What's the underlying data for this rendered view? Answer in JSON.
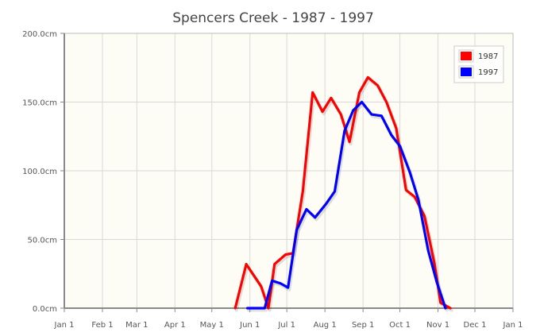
{
  "chart_data": {
    "type": "line",
    "title": "Spencers Creek - 1987 - 1997",
    "xlabel": "",
    "ylabel": "",
    "x_axis_type": "date",
    "xlim": [
      "Jan 1",
      "Jan 1"
    ],
    "ylim": [
      0,
      200
    ],
    "y_ticks": [
      {
        "value": 0,
        "label": "0.0cm"
      },
      {
        "value": 50,
        "label": "50.0cm"
      },
      {
        "value": 100,
        "label": "100.0cm"
      },
      {
        "value": 150,
        "label": "150.0cm"
      },
      {
        "value": 200,
        "label": "200.0cm"
      }
    ],
    "x_ticks": [
      "Jan 1",
      "Feb 1",
      "Mar 1",
      "Apr 1",
      "May 1",
      "Jun 1",
      "Jul 1",
      "Aug 1",
      "Sep 1",
      "Oct 1",
      "Nov 1",
      "Dec 1",
      "Jan 1"
    ],
    "grid": true,
    "legend_position": "top-right",
    "plot_background": "#fdfcf5",
    "series": [
      {
        "name": "1987",
        "color": "#ff0000",
        "points": [
          {
            "x": "May 20",
            "y": 0
          },
          {
            "x": "May 29",
            "y": 32
          },
          {
            "x": "Jun 10",
            "y": 16
          },
          {
            "x": "Jun 16",
            "y": 0
          },
          {
            "x": "Jun 21",
            "y": 32
          },
          {
            "x": "Jun 30",
            "y": 39
          },
          {
            "x": "Jul 6",
            "y": 40
          },
          {
            "x": "Jul 14",
            "y": 85
          },
          {
            "x": "Jul 22",
            "y": 157
          },
          {
            "x": "Jul 30",
            "y": 143
          },
          {
            "x": "Aug 6",
            "y": 153
          },
          {
            "x": "Aug 14",
            "y": 141
          },
          {
            "x": "Aug 21",
            "y": 121
          },
          {
            "x": "Aug 29",
            "y": 157
          },
          {
            "x": "Sep 5",
            "y": 168
          },
          {
            "x": "Sep 13",
            "y": 162
          },
          {
            "x": "Sep 20",
            "y": 150
          },
          {
            "x": "Sep 28",
            "y": 131
          },
          {
            "x": "Oct 6",
            "y": 86
          },
          {
            "x": "Oct 13",
            "y": 81
          },
          {
            "x": "Oct 21",
            "y": 67
          },
          {
            "x": "Oct 29",
            "y": 33
          },
          {
            "x": "Nov 3",
            "y": 4
          },
          {
            "x": "Nov 11",
            "y": 0
          }
        ]
      },
      {
        "name": "1997",
        "color": "#0000ff",
        "points": [
          {
            "x": "May 30",
            "y": 0
          },
          {
            "x": "Jun 13",
            "y": 0
          },
          {
            "x": "Jun 19",
            "y": 20
          },
          {
            "x": "Jun 26",
            "y": 18
          },
          {
            "x": "Jul 2",
            "y": 15
          },
          {
            "x": "Jul 9",
            "y": 57
          },
          {
            "x": "Jul 17",
            "y": 72
          },
          {
            "x": "Jul 24",
            "y": 66
          },
          {
            "x": "Aug 2",
            "y": 76
          },
          {
            "x": "Aug 9",
            "y": 85
          },
          {
            "x": "Aug 17",
            "y": 129
          },
          {
            "x": "Aug 24",
            "y": 144
          },
          {
            "x": "Aug 31",
            "y": 150
          },
          {
            "x": "Sep 8",
            "y": 141
          },
          {
            "x": "Sep 16",
            "y": 140
          },
          {
            "x": "Sep 24",
            "y": 126
          },
          {
            "x": "Oct 1",
            "y": 118
          },
          {
            "x": "Oct 9",
            "y": 99
          },
          {
            "x": "Oct 16",
            "y": 79
          },
          {
            "x": "Oct 24",
            "y": 42
          },
          {
            "x": "Oct 31",
            "y": 19
          },
          {
            "x": "Nov 7",
            "y": 0
          }
        ]
      }
    ]
  }
}
